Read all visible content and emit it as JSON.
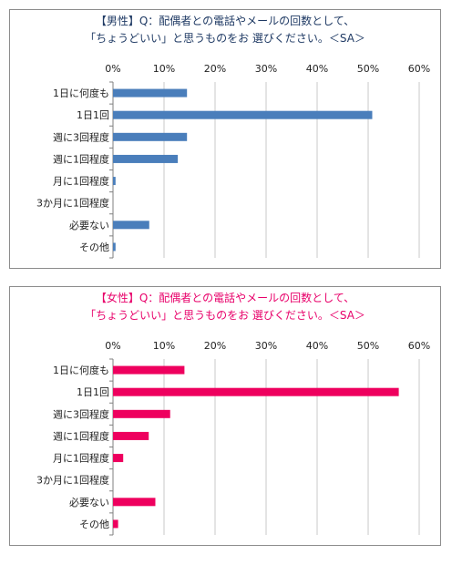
{
  "chart_data": [
    {
      "type": "bar",
      "orientation": "horizontal",
      "title": "【男性】Q：配偶者との電話やメールの回数として、",
      "subtitle": "「ちょうどいい」と思うものをお 選びください。＜SA＞",
      "categories": [
        "1日に何度も",
        "1日1回",
        "週に3回程度",
        "週に1回程度",
        "月に1回程度",
        "3か月に1回程度",
        "必要ない",
        "その他"
      ],
      "values": [
        14.5,
        50.8,
        14.5,
        12.7,
        0.5,
        0,
        7.1,
        0.5
      ],
      "xlim": [
        0,
        60
      ],
      "ticks": [
        "0%",
        "10%",
        "20%",
        "30%",
        "40%",
        "50%",
        "60%"
      ],
      "tick_values": [
        0,
        10,
        20,
        30,
        40,
        50,
        60
      ],
      "grid": true,
      "bar_color": "#4a7ebb",
      "title_color": "#1f3a64"
    },
    {
      "type": "bar",
      "orientation": "horizontal",
      "title": "【女性】Q：配偶者との電話やメールの回数として、",
      "subtitle": "「ちょうどいい」と思うものをお 選びください。＜SA＞",
      "categories": [
        "1日に何度も",
        "1日1回",
        "週に3回程度",
        "週に1回程度",
        "月に1回程度",
        "3か月に1回程度",
        "必要ない",
        "その他"
      ],
      "values": [
        14.0,
        56.0,
        11.2,
        7.0,
        2.0,
        0,
        8.3,
        1.0
      ],
      "xlim": [
        0,
        60
      ],
      "ticks": [
        "0%",
        "10%",
        "20%",
        "30%",
        "40%",
        "50%",
        "60%"
      ],
      "tick_values": [
        0,
        10,
        20,
        30,
        40,
        50,
        60
      ],
      "grid": true,
      "bar_color": "#ee005e",
      "title_color": "#e8006a"
    }
  ]
}
